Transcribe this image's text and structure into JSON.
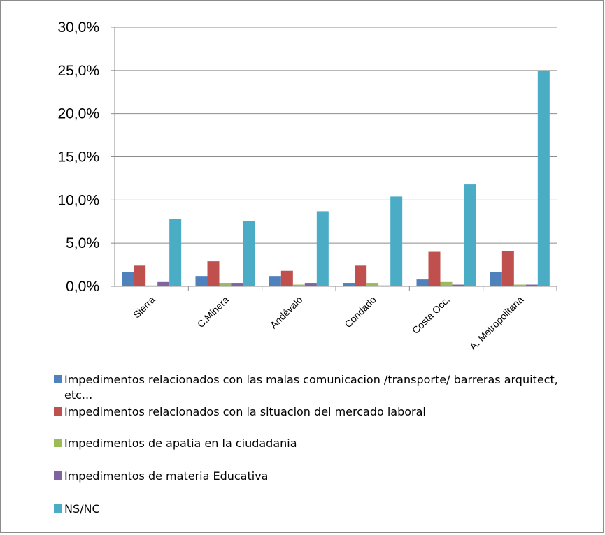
{
  "chart_data": {
    "type": "bar",
    "categories": [
      "Sierra",
      "C.Minera",
      "Andévalo",
      "Condado",
      "Costa Occ.",
      "A. Metropolitana"
    ],
    "ylim": [
      0,
      30
    ],
    "yticks": [
      "0,0%",
      "5,0%",
      "10,0%",
      "15,0%",
      "20,0%",
      "25,0%",
      "30,0%"
    ],
    "grid": true,
    "legend_position": "bottom",
    "series": [
      {
        "name": "Impedimentos relacionados con las malas comunicacion /transporte/ barreras arquitect,",
        "name_line2": "etc...",
        "color": "#4f81bd",
        "values": [
          1.7,
          1.2,
          1.2,
          0.4,
          0.8,
          1.7
        ]
      },
      {
        "name": "Impedimentos relacionados con la situacion del mercado laboral",
        "color": "#c0504d",
        "values": [
          2.4,
          2.9,
          1.8,
          2.4,
          4.0,
          4.1
        ]
      },
      {
        "name": "Impedimentos de apatia en la ciudadania",
        "color": "#9bbb59",
        "values": [
          0.1,
          0.4,
          0.2,
          0.4,
          0.5,
          0.2
        ]
      },
      {
        "name": "Impedimentos de materia Educativa",
        "color": "#8064a2",
        "values": [
          0.5,
          0.4,
          0.4,
          0.1,
          0.2,
          0.2
        ]
      },
      {
        "name": "NS/NC",
        "color": "#4bacc6",
        "values": [
          7.8,
          7.6,
          8.7,
          10.4,
          11.8,
          25.0
        ]
      }
    ]
  }
}
